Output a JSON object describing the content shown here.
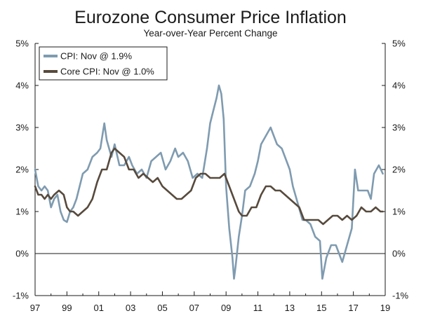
{
  "chart_data": {
    "type": "line",
    "title": "Eurozone Consumer Price Inflation",
    "subtitle": "Year-over-Year Percent Change",
    "xlabel": "",
    "ylabel": "",
    "x_range": [
      1997.0,
      2019.0
    ],
    "ylim": [
      -1,
      5
    ],
    "x_tick_values": [
      1997,
      1999,
      2001,
      2003,
      2005,
      2007,
      2009,
      2011,
      2013,
      2015,
      2017,
      2019
    ],
    "x_tick_labels": [
      "97",
      "99",
      "01",
      "03",
      "05",
      "07",
      "09",
      "11",
      "13",
      "15",
      "17",
      "19"
    ],
    "y_tick_values": [
      5,
      4,
      3,
      2,
      1,
      0,
      -1
    ],
    "y_tick_labels": [
      "5%",
      "4%",
      "3%",
      "2%",
      "1%",
      "0%",
      "-1%"
    ],
    "grid": false,
    "zero_line": true,
    "legend_position": "top-left",
    "series": [
      {
        "name": "CPI: Nov @ 1.9%",
        "color": "#7f9bb0",
        "x": [
          1997.0,
          1997.2,
          1997.4,
          1997.6,
          1997.8,
          1998.0,
          1998.2,
          1998.4,
          1998.6,
          1998.8,
          1999.0,
          1999.2,
          1999.4,
          1999.6,
          1999.8,
          2000.0,
          2000.3,
          2000.6,
          2000.9,
          2001.1,
          2001.35,
          2001.5,
          2001.8,
          2002.0,
          2002.3,
          2002.6,
          2002.9,
          2003.1,
          2003.4,
          2003.7,
          2004.0,
          2004.3,
          2004.6,
          2004.9,
          2005.2,
          2005.5,
          2005.8,
          2006.0,
          2006.3,
          2006.6,
          2006.9,
          2007.2,
          2007.5,
          2007.8,
          2008.0,
          2008.2,
          2008.4,
          2008.55,
          2008.7,
          2008.85,
          2009.0,
          2009.2,
          2009.4,
          2009.5,
          2009.6,
          2009.8,
          2010.0,
          2010.2,
          2010.5,
          2010.8,
          2011.0,
          2011.2,
          2011.5,
          2011.8,
          2012.0,
          2012.2,
          2012.5,
          2012.8,
          2013.0,
          2013.2,
          2013.5,
          2013.8,
          2014.0,
          2014.3,
          2014.6,
          2014.9,
          2015.05,
          2015.3,
          2015.6,
          2015.9,
          2016.1,
          2016.3,
          2016.6,
          2016.9,
          2017.1,
          2017.3,
          2017.6,
          2017.9,
          2018.1,
          2018.3,
          2018.6,
          2018.85
        ],
        "values": [
          2.0,
          1.6,
          1.5,
          1.6,
          1.5,
          1.1,
          1.3,
          1.4,
          1.0,
          0.8,
          0.75,
          1.0,
          1.1,
          1.3,
          1.6,
          1.9,
          2.0,
          2.3,
          2.4,
          2.5,
          3.1,
          2.7,
          2.3,
          2.6,
          2.1,
          2.1,
          2.3,
          2.1,
          1.9,
          2.0,
          1.8,
          2.2,
          2.3,
          2.4,
          2.0,
          2.2,
          2.5,
          2.3,
          2.4,
          2.2,
          1.8,
          1.9,
          1.8,
          2.5,
          3.1,
          3.4,
          3.7,
          4.0,
          3.8,
          3.2,
          1.6,
          0.6,
          -0.1,
          -0.6,
          -0.3,
          0.4,
          0.9,
          1.5,
          1.6,
          1.9,
          2.2,
          2.6,
          2.8,
          3.0,
          2.8,
          2.6,
          2.5,
          2.2,
          2.0,
          1.6,
          1.2,
          0.8,
          0.8,
          0.7,
          0.4,
          0.3,
          -0.6,
          -0.1,
          0.2,
          0.2,
          0.0,
          -0.2,
          0.2,
          0.6,
          2.0,
          1.5,
          1.5,
          1.5,
          1.3,
          1.9,
          2.1,
          1.9
        ]
      },
      {
        "name": "Core CPI: Nov @ 1.0%",
        "color": "#574a3d",
        "x": [
          1997.0,
          1997.2,
          1997.4,
          1997.6,
          1997.8,
          1998.0,
          1998.2,
          1998.5,
          1998.8,
          1999.0,
          1999.2,
          1999.4,
          1999.7,
          2000.0,
          2000.3,
          2000.6,
          2000.9,
          2001.2,
          2001.5,
          2001.8,
          2002.0,
          2002.3,
          2002.6,
          2002.9,
          2003.2,
          2003.5,
          2003.8,
          2004.1,
          2004.4,
          2004.7,
          2005.0,
          2005.3,
          2005.6,
          2005.9,
          2006.2,
          2006.5,
          2006.8,
          2007.1,
          2007.4,
          2007.7,
          2008.0,
          2008.3,
          2008.6,
          2008.9,
          2009.2,
          2009.5,
          2009.8,
          2010.0,
          2010.3,
          2010.6,
          2010.9,
          2011.2,
          2011.5,
          2011.8,
          2012.1,
          2012.4,
          2012.7,
          2013.0,
          2013.3,
          2013.6,
          2013.9,
          2014.2,
          2014.5,
          2014.8,
          2015.1,
          2015.4,
          2015.7,
          2016.0,
          2016.3,
          2016.6,
          2016.9,
          2017.2,
          2017.5,
          2017.8,
          2018.1,
          2018.4,
          2018.7,
          2018.85
        ],
        "values": [
          1.6,
          1.4,
          1.4,
          1.3,
          1.4,
          1.3,
          1.4,
          1.5,
          1.4,
          1.1,
          1.0,
          1.0,
          0.9,
          1.0,
          1.1,
          1.3,
          1.7,
          2.0,
          2.0,
          2.4,
          2.5,
          2.4,
          2.3,
          2.0,
          2.0,
          1.8,
          1.9,
          1.8,
          1.7,
          1.8,
          1.6,
          1.5,
          1.4,
          1.3,
          1.3,
          1.4,
          1.5,
          1.8,
          1.9,
          1.9,
          1.8,
          1.8,
          1.8,
          1.9,
          1.6,
          1.3,
          1.0,
          0.9,
          0.9,
          1.1,
          1.1,
          1.4,
          1.6,
          1.6,
          1.5,
          1.5,
          1.4,
          1.3,
          1.2,
          1.1,
          0.8,
          0.8,
          0.8,
          0.8,
          0.7,
          0.8,
          0.9,
          0.9,
          0.8,
          0.9,
          0.8,
          0.9,
          1.1,
          1.0,
          1.0,
          1.1,
          1.0,
          1.0
        ]
      }
    ]
  }
}
